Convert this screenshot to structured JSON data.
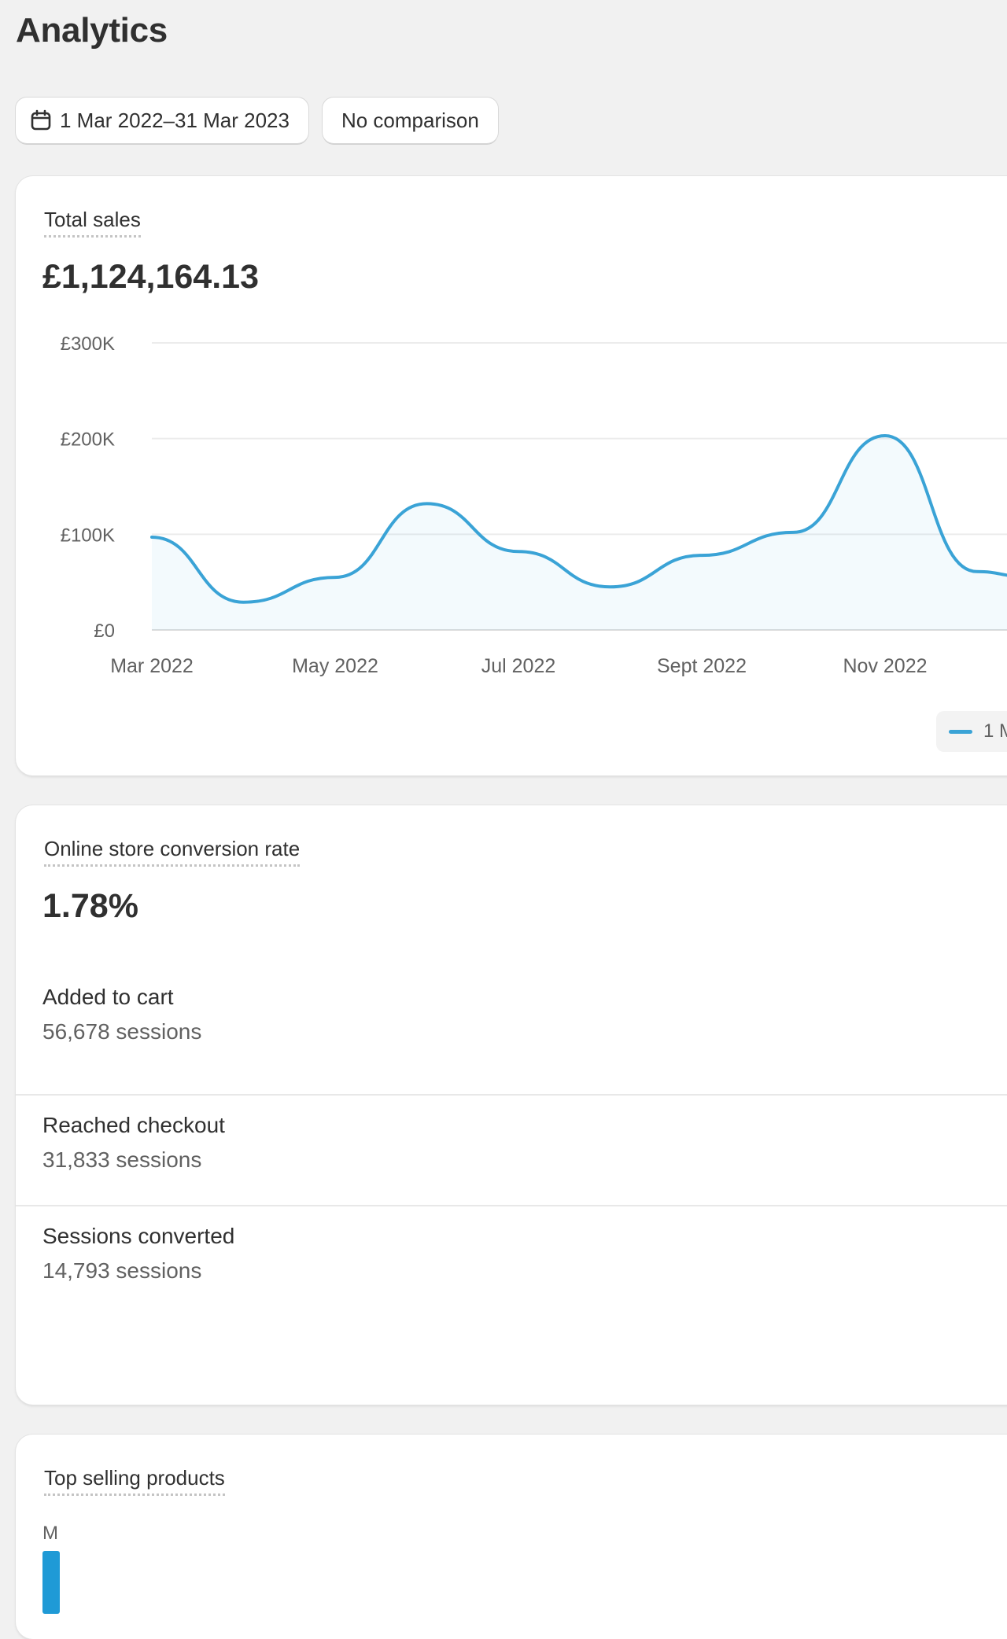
{
  "page": {
    "title": "Analytics"
  },
  "toolbar": {
    "date_range": "1 Mar 2022–31 Mar 2023",
    "comparison": "No comparison",
    "calendar_icon": "calendar-icon"
  },
  "total_sales": {
    "title": "Total sales",
    "value": "£1,124,164.13",
    "legend_label": "1 M",
    "chart_data": {
      "type": "line",
      "x": [
        "Mar 2022",
        "Apr 2022",
        "May 2022",
        "Jun 2022",
        "Jul 2022",
        "Aug 2022",
        "Sept 2022",
        "Oct 2022",
        "Nov 2022",
        "Dec 2022"
      ],
      "x_tick_labels": [
        "Mar 2022",
        "May 2022",
        "Jul 2022",
        "Sept 2022",
        "Nov 2022"
      ],
      "y_tick_labels": [
        "£0",
        "£100K",
        "£200K",
        "£300K"
      ],
      "y_ticks": [
        0,
        100000,
        200000,
        300000
      ],
      "ylim": [
        0,
        300000
      ],
      "series": [
        {
          "values": [
            97000,
            29000,
            55000,
            132000,
            82000,
            45000,
            78000,
            102000,
            203000,
            61000
          ],
          "color": "#3aa3d6"
        }
      ],
      "grid": true,
      "legend_position": "bottom-right"
    }
  },
  "conversion": {
    "title": "Online store conversion rate",
    "value": "1.78%",
    "steps": [
      {
        "label": "Added to cart",
        "value": "56,678 sessions"
      },
      {
        "label": "Reached checkout",
        "value": "31,833 sessions"
      },
      {
        "label": "Sessions converted",
        "value": "14,793 sessions"
      }
    ]
  },
  "top_products": {
    "title": "Top selling products",
    "first_letter": "M",
    "bar_color": "#1f9ad6"
  }
}
